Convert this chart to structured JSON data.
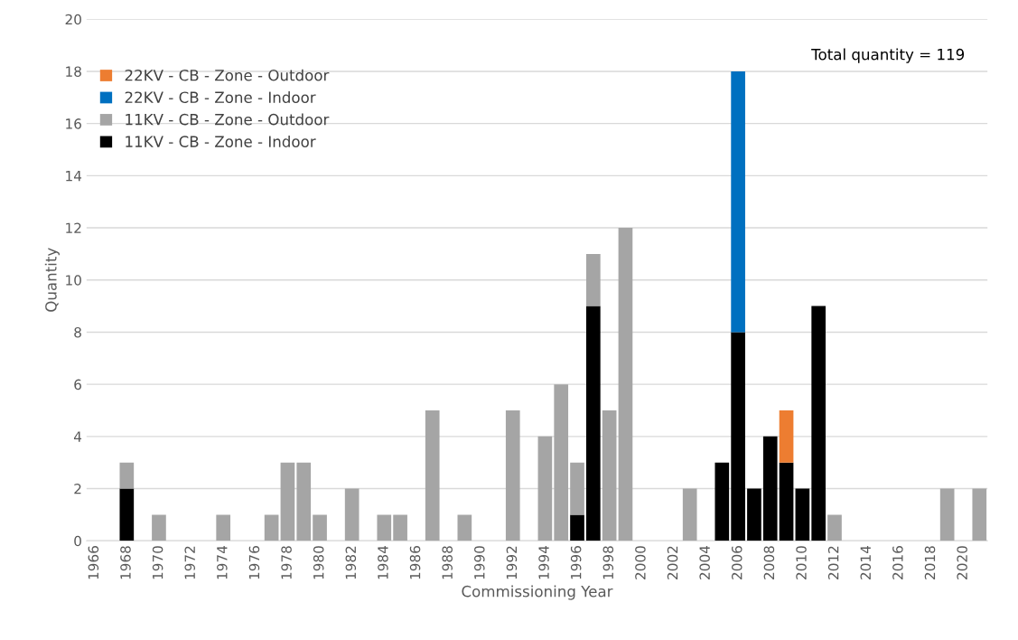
{
  "chart_data": {
    "type": "bar",
    "stacked": true,
    "xlabel": "Commissioning Year",
    "ylabel": "Quantity",
    "categories": [
      "1966",
      null,
      "1968",
      null,
      "1970",
      null,
      "1972",
      null,
      "1974",
      null,
      "1976",
      null,
      "1978",
      null,
      "1980",
      null,
      "1982",
      null,
      "1984",
      null,
      "1986",
      null,
      "1988",
      null,
      "1990",
      null,
      "1992",
      null,
      "1994",
      null,
      "1996",
      null,
      "1998",
      null,
      "2000",
      null,
      "2002",
      null,
      "2004",
      null,
      "2006",
      null,
      "2008",
      null,
      "2010",
      null,
      "2012",
      null,
      "2014",
      null,
      "2016",
      null,
      "2018",
      null,
      "2020",
      null
    ],
    "series": [
      {
        "name": "11KV - CB - Zone - Indoor",
        "color": "#000000",
        "values": [
          0,
          0,
          2,
          0,
          0,
          0,
          0,
          0,
          0,
          0,
          0,
          0,
          0,
          0,
          0,
          0,
          0,
          0,
          0,
          0,
          0,
          0,
          0,
          0,
          0,
          0,
          0,
          0,
          0,
          0,
          1,
          9,
          0,
          0,
          0,
          0,
          0,
          0,
          0,
          3,
          8,
          2,
          4,
          3,
          2,
          9,
          0,
          0,
          0,
          0,
          0,
          0,
          0,
          0,
          0,
          0
        ]
      },
      {
        "name": "11KV - CB - Zone - Outdoor",
        "color": "#a5a5a5",
        "values": [
          0,
          0,
          1,
          0,
          1,
          0,
          0,
          0,
          1,
          0,
          0,
          1,
          3,
          3,
          1,
          0,
          2,
          0,
          1,
          1,
          0,
          5,
          0,
          1,
          0,
          0,
          5,
          0,
          4,
          6,
          2,
          2,
          5,
          12,
          0,
          0,
          0,
          2,
          0,
          0,
          0,
          0,
          0,
          0,
          0,
          0,
          1,
          0,
          0,
          0,
          0,
          0,
          0,
          2,
          0,
          2
        ]
      },
      {
        "name": "22KV - CB - Zone - Indoor",
        "color": "#0070c0",
        "values": [
          0,
          0,
          0,
          0,
          0,
          0,
          0,
          0,
          0,
          0,
          0,
          0,
          0,
          0,
          0,
          0,
          0,
          0,
          0,
          0,
          0,
          0,
          0,
          0,
          0,
          0,
          0,
          0,
          0,
          0,
          0,
          0,
          0,
          0,
          0,
          0,
          0,
          0,
          0,
          0,
          10,
          0,
          0,
          0,
          0,
          0,
          0,
          0,
          0,
          0,
          0,
          0,
          0,
          0,
          0,
          0
        ]
      },
      {
        "name": "22KV - CB - Zone - Outdoor",
        "color": "#ed7d31",
        "values": [
          0,
          0,
          0,
          0,
          0,
          0,
          0,
          0,
          0,
          0,
          0,
          0,
          0,
          0,
          0,
          0,
          0,
          0,
          0,
          0,
          0,
          0,
          0,
          0,
          0,
          0,
          0,
          0,
          0,
          0,
          0,
          0,
          0,
          0,
          0,
          0,
          0,
          0,
          0,
          0,
          0,
          0,
          0,
          2,
          0,
          0,
          0,
          0,
          0,
          0,
          0,
          0,
          0,
          0,
          0,
          0
        ]
      }
    ],
    "ylim": [
      0,
      20
    ],
    "yticks": [
      0,
      2,
      4,
      6,
      8,
      10,
      12,
      14,
      16,
      18,
      20
    ],
    "grid": "y",
    "legend": "top left",
    "annotations": [
      "Total quantity = 119"
    ]
  }
}
